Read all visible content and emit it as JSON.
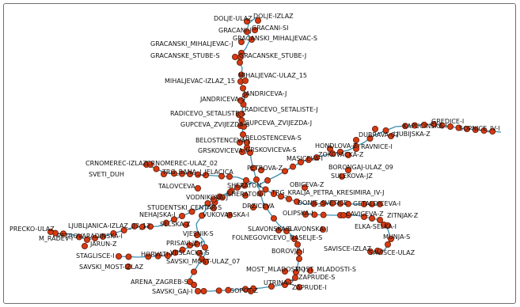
{
  "map": {
    "route_color": "#3a8fb0",
    "stop_fill": "#d63a12",
    "stop_stroke": "#5a1a08",
    "stops": [
      "DOLJE-ULAZ",
      "DOLJE-IZLAZ",
      "GRACANI-J",
      "GRACANI-SI",
      "GRACANSKI_MIHALJEVAC-J",
      "GRACANSKI_MIHALJEVAC-S",
      "GRACANSKE_STUBE-S",
      "GRACANSKE_STUBE-J",
      "MIHALJEVAC-IZLAZ_15",
      "MIHALJEVAC-ULAZ_15",
      "JANDRICEVA-S",
      "JANDRICEVA-J",
      "RADICEVO_SETALISTE-S",
      "RADICEVO_SETALISTE-J",
      "GUPCEVA_ZVIJEZDA-S",
      "GUPCEVA_ZVIJEZDA-J",
      "BELOSTENCEVA-J",
      "BELOSTENCEVA-S",
      "GRSKOVICEVA-J",
      "GRSKOVICEVA-S",
      "KAPUCINSKA-I",
      "GREDICE-I",
      "DUBRAVA-07",
      "LJUBIJSKA-Z",
      "SOPNICE_IV-I",
      "HONDLOVA-Z",
      "RAVNICE-I",
      "CRNOMEREC-IZLAZ",
      "CRNOMEREC-ULAZ_02",
      "SVETI_DUH",
      "TRG_BANA_J_JELACICA",
      "MASICEVA-I",
      "ZOKOVACKA-Z",
      "BORONGAJ-ULAZ_09",
      "PETROVA-Z",
      "SULEKOVA-JZ",
      "TALOVCEVA",
      "SHERATON",
      "SHERATON-I",
      "OBICEVA-Z",
      "TRG_KRALJA_PETRA_KRESIMIRA_IV-J",
      "VODNIKOVA-J",
      "STUDENTSKI_CENTAR-S",
      "DRZICEVA",
      "DONJE_SVETICE",
      "GETALDICEVA-I",
      "NEHAJSKA-I",
      "VUKOVARSKA-I",
      "OLIPSKA-I",
      "CAVICEVA-Z",
      "ZITNJAK-Z",
      "SELSKA-Z",
      "PRECKO-ULAZ",
      "LJUBLJANICA-IZLAZ_03_12",
      "JARUN-Z",
      "PETROVARADINSKA-I",
      "M_RADEV-I",
      "VJESNIK-S",
      "SLAVONSKA-S",
      "SLAVONSKA-J",
      "ELKA-SELKA-I",
      "MUNJA-S",
      "STAGLISCE-I",
      "HORVATI-I",
      "PRISAVLJE-J",
      "FOLNEGOVICEVO_NASELJE-S",
      "SAVSKI_MOST-IZLAZ",
      "VESLACKA-S",
      "SAVSKI_MOST-ULAZ_07",
      "BOROVJE-I",
      "SAVISCE-IZLAZ",
      "SAVISCE-ULAZ",
      "MOST_MLADOSTI-J",
      "MOST_MLADOSTI-S",
      "ARENA_ZAGREB-S",
      "ZAPRUDE-S",
      "UTRINA-Z",
      "SAVSKI_GAJ-I",
      "SOPOT-Z",
      "ZAPRUDE-I"
    ]
  }
}
